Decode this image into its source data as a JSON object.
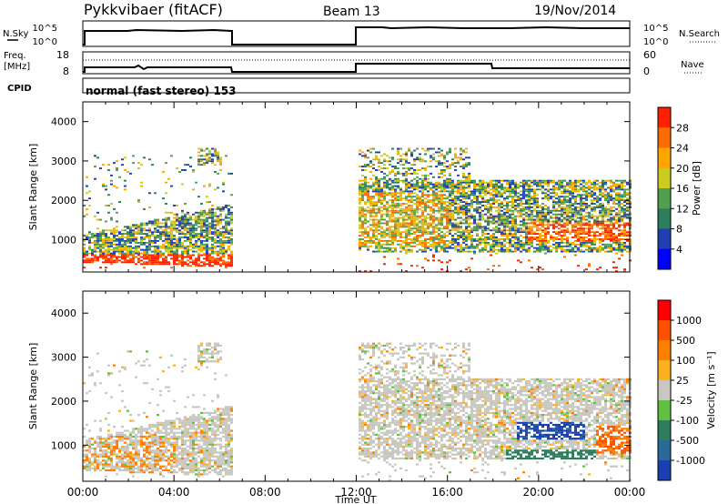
{
  "header": {
    "title": "Pykkvibaer (fitACF)",
    "beam": "Beam 13",
    "date": "19/Nov/2014"
  },
  "strips": {
    "nsky_label": "N.Sky",
    "nsearch_label": "N.Search",
    "freq_label_line1": "Freq.",
    "freq_label_line2": "[MHz]",
    "nave_label": "Nave",
    "cpid_label": "CPID",
    "noise_left_ticks": [
      "10^5",
      "10^0"
    ],
    "noise_right_ticks": [
      "10^5",
      "10^0"
    ],
    "freq_left_ticks": [
      "18",
      "8"
    ],
    "freq_right_ticks": [
      "60",
      "0"
    ],
    "cpid_text": "normal (fast stereo) 153"
  },
  "chart_data": [
    {
      "type": "heatmap",
      "panel": "power",
      "ylabel": "Slant Range [km]",
      "xlabel": "Time UT",
      "ylim": [
        180,
        4500
      ],
      "yticks": [
        "1000",
        "2000",
        "3000",
        "4000"
      ],
      "xticks": [
        "00:00",
        "04:00",
        "08:00",
        "12:00",
        "16:00",
        "20:00",
        "00:00"
      ],
      "xlim_hours": [
        0,
        24
      ],
      "colorbar": {
        "label": "Power [dB]",
        "ticks": [
          "4",
          "8",
          "12",
          "16",
          "20",
          "24",
          "28"
        ],
        "colors": [
          "#0000ff",
          "#1f3fb0",
          "#2e7d5e",
          "#50a050",
          "#cccc20",
          "#ffa500",
          "#ff6a00",
          "#ff2000"
        ]
      },
      "data_blocks_hours": [
        [
          0.0,
          6.5
        ],
        [
          12.0,
          24.0
        ]
      ]
    },
    {
      "type": "heatmap",
      "panel": "velocity",
      "ylabel": "Slant Range [km]",
      "xlabel": "Time UT",
      "ylim": [
        180,
        4500
      ],
      "yticks": [
        "1000",
        "2000",
        "3000",
        "4000"
      ],
      "xticks": [
        "00:00",
        "04:00",
        "08:00",
        "12:00",
        "16:00",
        "20:00",
        "00:00"
      ],
      "xlim_hours": [
        0,
        24
      ],
      "colorbar": {
        "label": "Velocity [m s⁻¹]",
        "ticks": [
          "1000",
          "500",
          "100",
          "25",
          "-25",
          "-100",
          "-500",
          "-1000"
        ],
        "colors": [
          "#1a3fb0",
          "#2a6a9a",
          "#2e7d5e",
          "#60c040",
          "#c8c8c0",
          "#ffb020",
          "#ff8000",
          "#ff5000",
          "#ff0000"
        ]
      },
      "data_blocks_hours": [
        [
          0.0,
          6.5
        ],
        [
          12.0,
          24.0
        ]
      ]
    }
  ]
}
